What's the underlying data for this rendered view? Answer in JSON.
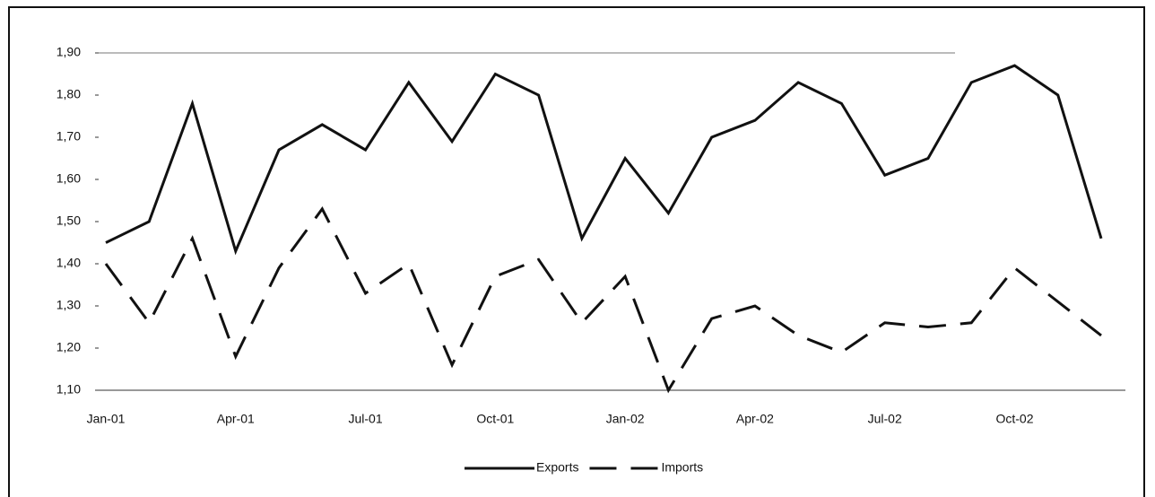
{
  "chart_data": {
    "type": "line",
    "categories": [
      "Jan-01",
      null,
      null,
      "Apr-01",
      null,
      null,
      "Jul-01",
      null,
      null,
      "Oct-01",
      null,
      null,
      "Jan-02",
      null,
      null,
      "Apr-02",
      null,
      null,
      "Jul-02",
      null,
      null,
      "Oct-02",
      null,
      null
    ],
    "series": [
      {
        "name": "Exports",
        "color": "#111111",
        "dash": false,
        "values": [
          1.45,
          1.5,
          1.78,
          1.43,
          1.67,
          1.73,
          1.67,
          1.83,
          1.69,
          1.85,
          1.8,
          1.46,
          1.65,
          1.52,
          1.7,
          1.74,
          1.83,
          1.78,
          1.61,
          1.65,
          1.83,
          1.87,
          1.8,
          1.46
        ]
      },
      {
        "name": "Imports",
        "color": "#111111",
        "dash": true,
        "values": [
          1.4,
          1.26,
          1.46,
          1.18,
          1.39,
          1.53,
          1.33,
          1.4,
          1.16,
          1.37,
          1.41,
          1.26,
          1.37,
          1.1,
          1.27,
          1.3,
          1.23,
          1.19,
          1.26,
          1.25,
          1.26,
          1.39,
          1.31,
          1.23
        ]
      }
    ],
    "ylim": [
      1.1,
      1.9
    ],
    "yticks": [
      {
        "value": 1.1,
        "label": "1,10"
      },
      {
        "value": 1.2,
        "label": "1,20"
      },
      {
        "value": 1.3,
        "label": "1,30"
      },
      {
        "value": 1.4,
        "label": "1,40"
      },
      {
        "value": 1.5,
        "label": "1,50"
      },
      {
        "value": 1.6,
        "label": "1,60"
      },
      {
        "value": 1.7,
        "label": "1,70"
      },
      {
        "value": 1.8,
        "label": "1,80"
      },
      {
        "value": 1.9,
        "label": "1,90"
      }
    ],
    "grid": false,
    "legend": "bottom"
  }
}
